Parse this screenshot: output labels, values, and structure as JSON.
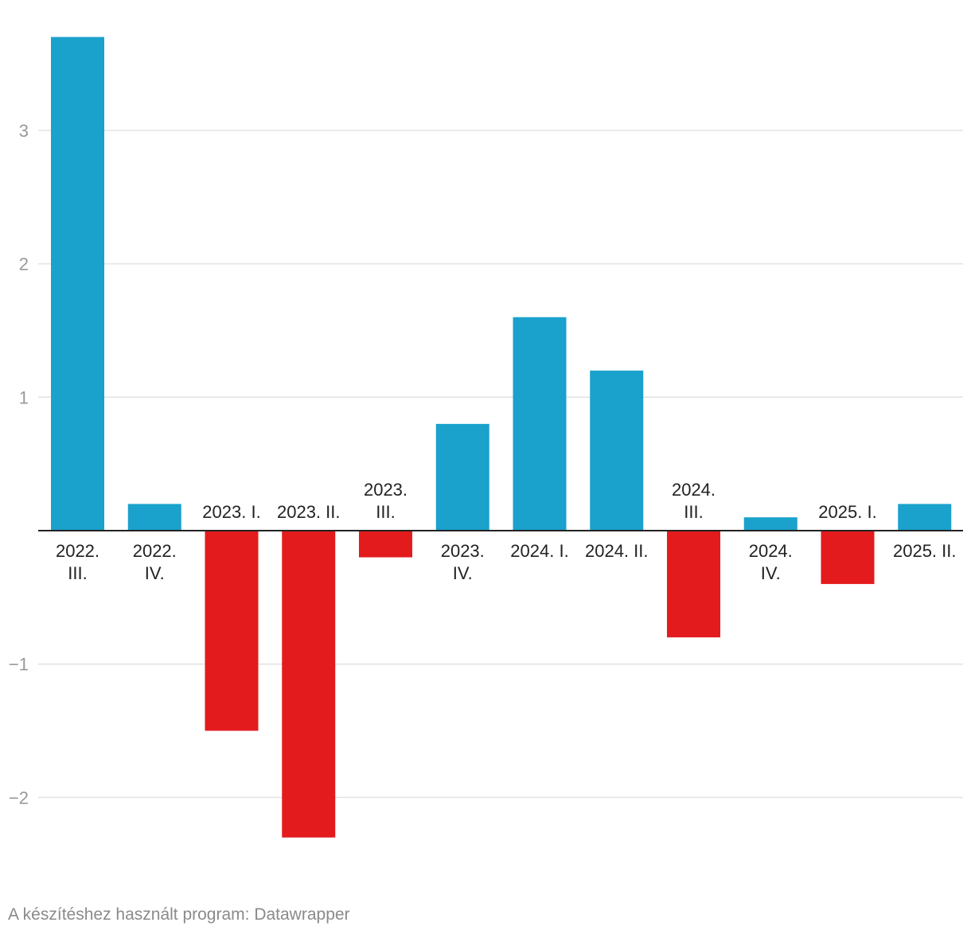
{
  "chart_data": {
    "type": "bar",
    "title": "",
    "xlabel": "",
    "ylabel": "",
    "ylim": [
      -2.5,
      3.7
    ],
    "yticks": [
      3,
      2,
      1,
      -1,
      -2
    ],
    "ytick_labels": [
      "3",
      "2",
      "1",
      "−1",
      "−2"
    ],
    "categories": [
      [
        "2022.",
        "III."
      ],
      [
        "2022.",
        "IV."
      ],
      [
        "2023. I."
      ],
      [
        "2023. II."
      ],
      [
        "2023.",
        "III."
      ],
      [
        "2023.",
        "IV."
      ],
      [
        "2024. I."
      ],
      [
        "2024. II."
      ],
      [
        "2024.",
        "III."
      ],
      [
        "2024.",
        "IV."
      ],
      [
        "2025. I."
      ],
      [
        "2025. II."
      ]
    ],
    "values": [
      3.7,
      0.2,
      -1.5,
      -2.3,
      -0.2,
      0.8,
      1.6,
      1.2,
      -0.8,
      0.1,
      -0.4,
      0.2
    ],
    "colors": {
      "positive": "#1aa1cc",
      "negative": "#e31b1d",
      "grid": "#e2e2e2",
      "axis": "#222222",
      "tick": "#999999",
      "label": "#222222"
    }
  },
  "footer": {
    "credit": "A készítéshez használt program: Datawrapper"
  }
}
